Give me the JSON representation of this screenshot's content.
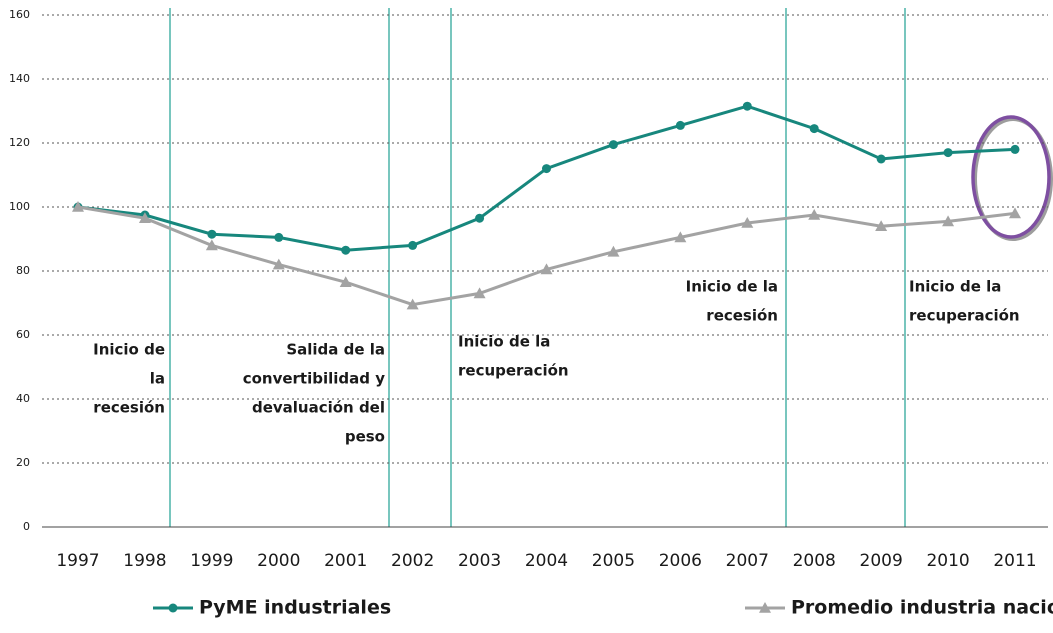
{
  "chart_data": {
    "type": "line",
    "categories": [
      "1997",
      "1998",
      "1999",
      "2000",
      "2001",
      "2002",
      "2003",
      "2004",
      "2005",
      "2006",
      "2007",
      "2008",
      "2009",
      "2010",
      "2011"
    ],
    "series": [
      {
        "name": "PyME industriales",
        "color": "#17877d",
        "values": [
          100,
          97.5,
          91.5,
          90.5,
          86.5,
          88,
          96.5,
          112,
          119.5,
          125.5,
          131.5,
          124.5,
          115,
          117,
          118
        ]
      },
      {
        "name": "Promedio industria nacional",
        "color": "#a3a3a3",
        "values": [
          100,
          96.5,
          88,
          82,
          76.5,
          69.5,
          73,
          80.5,
          86,
          90.5,
          95,
          97.5,
          94,
          95.5,
          98
        ]
      }
    ],
    "ylim": [
      0,
      160
    ],
    "yticks": [
      0,
      20,
      40,
      60,
      80,
      100,
      120,
      140,
      160
    ],
    "grid": true,
    "legend": "bottom",
    "annotations": [
      [
        "Inicio de",
        "la",
        "recesión"
      ],
      [
        "Salida de la",
        "convertibilidad y",
        "devaluación del",
        "peso"
      ],
      [
        "Inicio de la",
        "recuperación"
      ],
      [
        "Inicio de la",
        "recesión"
      ],
      [
        "Inicio de la",
        "recuperación"
      ]
    ]
  }
}
